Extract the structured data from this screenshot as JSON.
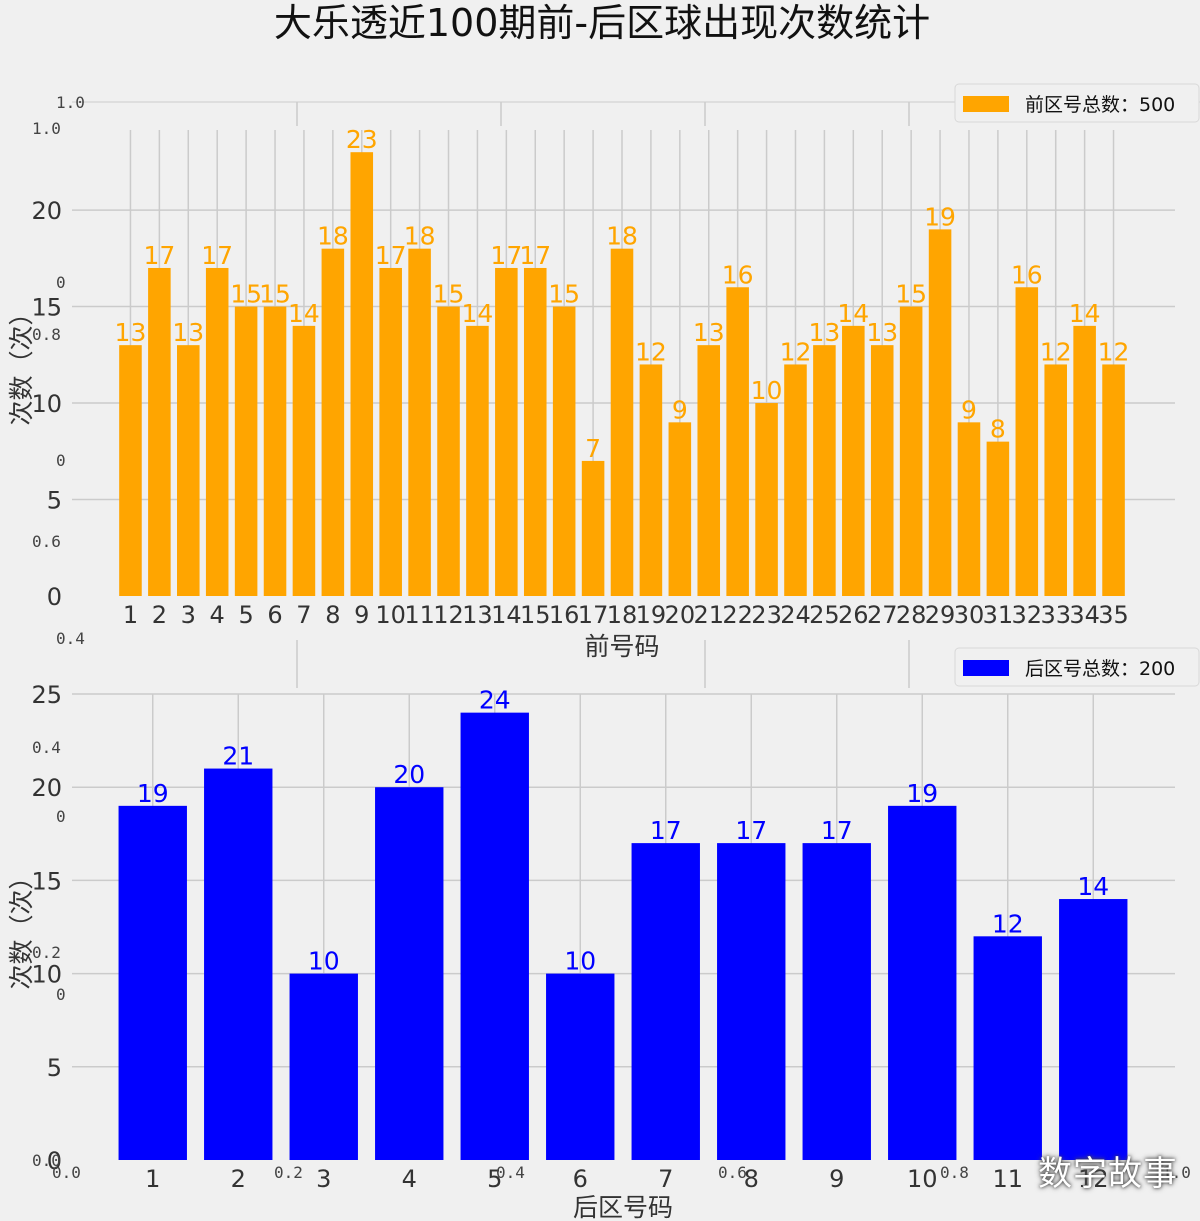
{
  "title": "大乐透近100期前-后区球出现次数统计",
  "watermark": "数字故事",
  "chart_data": [
    {
      "type": "bar",
      "name": "front",
      "categories": [
        "1",
        "2",
        "3",
        "4",
        "5",
        "6",
        "7",
        "8",
        "9",
        "10",
        "11",
        "12",
        "13",
        "14",
        "15",
        "16",
        "17",
        "18",
        "19",
        "20",
        "21",
        "22",
        "23",
        "24",
        "25",
        "26",
        "27",
        "28",
        "29",
        "30",
        "31",
        "32",
        "33",
        "34",
        "35"
      ],
      "values": [
        13,
        17,
        13,
        17,
        15,
        15,
        14,
        18,
        23,
        17,
        18,
        15,
        14,
        17,
        17,
        15,
        7,
        18,
        12,
        9,
        13,
        16,
        10,
        12,
        13,
        14,
        13,
        15,
        19,
        9,
        8,
        16,
        12,
        14,
        12
      ],
      "color": "#ffa500",
      "xlabel": "前号码",
      "ylabel": "次数（次）",
      "legend": "前区号总数：500",
      "legend_position": "top-right",
      "ylim": [
        0,
        24.15
      ],
      "yticks": [
        0,
        5,
        10,
        15,
        20
      ],
      "grid": true
    },
    {
      "type": "bar",
      "name": "back",
      "categories": [
        "1",
        "2",
        "3",
        "4",
        "5",
        "6",
        "7",
        "8",
        "9",
        "10",
        "11",
        "12"
      ],
      "values": [
        19,
        21,
        10,
        20,
        24,
        10,
        17,
        17,
        17,
        19,
        12,
        14
      ],
      "color": "#0000ff",
      "xlabel": "后区号码",
      "ylabel": "次数（次）",
      "legend": "后区号总数：200",
      "legend_position": "top-right",
      "ylim": [
        0,
        25
      ],
      "yticks": [
        0,
        5,
        10,
        15,
        20,
        25
      ],
      "grid": true
    }
  ],
  "ghost_axis": {
    "left_ticks": [
      "1.0",
      "1.0",
      "0",
      "0.8",
      "0",
      "0.6",
      "0.4",
      "0.4",
      "0",
      "0.2",
      "0",
      "0.0"
    ],
    "bottom_ticks": [
      "0.0",
      "0.2",
      "0.4",
      "0.6",
      "0.8",
      "1.0"
    ]
  }
}
